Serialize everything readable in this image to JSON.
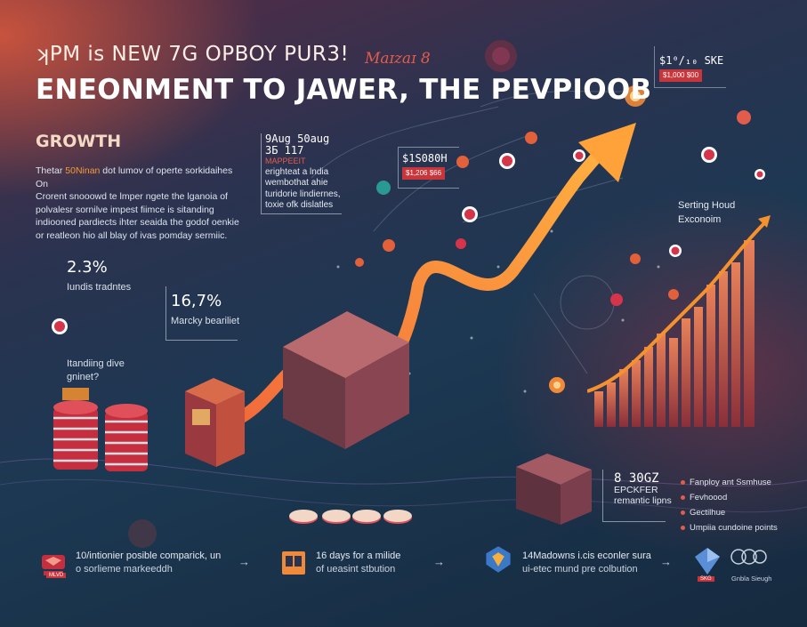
{
  "header": {
    "headline": "ʞPM is NEW 7G OPBOY PUR3!",
    "script_text": "Maɪzaɪ 8",
    "title": "ENEONMENT TO JAWER, THE PEVPIOOB"
  },
  "growth_section": {
    "heading": "GROWTH",
    "body_lines": [
      {
        "pre": "Thetar ",
        "hl": "50Ninan",
        "post": " dot lumov of operte sorkidaihes On"
      },
      {
        "pre": "Crorent snooowd te lmper ngete the lganoia of",
        "hl": "",
        "post": ""
      },
      {
        "pre": "polvalesr sornilve impest fiimce is sitanding",
        "hl": "",
        "post": ""
      },
      {
        "pre": "indiooned pardiects ihter seaida the godof oenkie",
        "hl": "",
        "post": ""
      },
      {
        "pre": "or reatleon hio all blay of ivas pomday sermiic.",
        "hl": "",
        "post": ""
      }
    ]
  },
  "stats": {
    "stat1": {
      "value": "2.3%",
      "label": "Iundis tradntes"
    },
    "stat2": {
      "value": "16,7%",
      "label": "Marcky beariliet"
    },
    "trading": {
      "line1": "Itandiing dive",
      "line2": "gninet?"
    }
  },
  "callouts": {
    "top_center": {
      "line1": "9Aug 50aug",
      "line2": "ЗБ 117",
      "line3": "MAPPEEIT",
      "line4": "erighteat a lndia",
      "line5": "wembothat ahie",
      "line6": "turidorie lindiernes,",
      "line7": "toxie ofk dislatles"
    },
    "mid": {
      "value": "$1S080H",
      "badge": "$1,206 $66"
    },
    "top_right": {
      "value": "$1⁰/₁₀ SKE",
      "badge": "$1,000 $00"
    },
    "right": {
      "line1": "Serting Houd",
      "line2": "Exconoim"
    },
    "bottom_right": {
      "value": "8 30GZ",
      "line1": "EPCKFER",
      "line2": "remantic lipns"
    }
  },
  "bullets": [
    "Fanploy ant Ssmhuse",
    "Fevhoood",
    "Gectilhue",
    "Umpiia cundoine points"
  ],
  "steps": [
    {
      "line1": "10/intionier posible comparick, un",
      "line2": "o sorlieme markeeddh"
    },
    {
      "line1": "16 days for a milide",
      "line2": "of ueasint stbution"
    },
    {
      "line1": "14Madowns i.cis econler sura",
      "line2": "ui-etec mund pre colbution"
    }
  ],
  "footer": {
    "logo_text": "Gnbla Sieugh",
    "step1_badge": "MLVD",
    "step3_badge": "SKG"
  },
  "colors": {
    "accent_orange": "#f5922e",
    "accent_red": "#e25c4c",
    "bg_dark": "#162a3f"
  }
}
